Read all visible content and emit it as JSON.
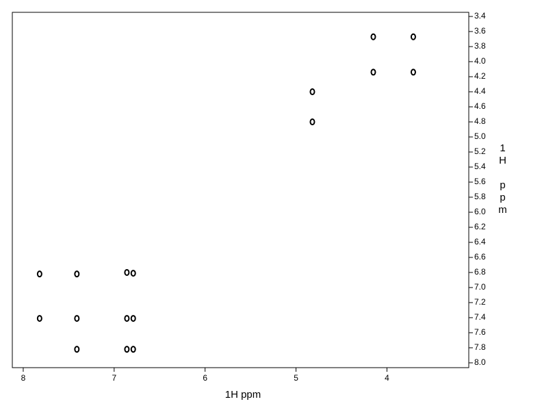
{
  "chart_data": {
    "type": "scatter",
    "x_label": "1H ppm",
    "y_label": "1H ppm",
    "xlim": [
      8.12,
      3.1
    ],
    "ylim": [
      3.345,
      8.064
    ],
    "xticks": [
      8,
      7,
      6,
      5,
      4
    ],
    "yticks": [
      3.4,
      3.6,
      3.8,
      {
        "value": 4.0,
        "label": "4.0"
      },
      4.2,
      4.4,
      4.6,
      4.8,
      {
        "value": 5.0,
        "label": "5.0"
      },
      5.2,
      5.4,
      5.6,
      5.8,
      {
        "value": 6.0,
        "label": "6.0"
      },
      6.2,
      6.4,
      6.6,
      6.8,
      {
        "value": 7.0,
        "label": "7.0"
      },
      7.2,
      7.4,
      7.6,
      7.8,
      {
        "value": 8.0,
        "label": "8.0"
      }
    ],
    "color": "#000000",
    "x": [
      7.82,
      7.41,
      6.86,
      6.79,
      7.82,
      7.41,
      6.86,
      6.79,
      7.41,
      6.86,
      6.79,
      4.82,
      4.82,
      4.15,
      3.71,
      4.15,
      3.71
    ],
    "y": [
      6.82,
      6.82,
      6.8,
      6.81,
      7.41,
      7.41,
      7.41,
      7.41,
      7.82,
      7.82,
      7.82,
      4.8,
      4.4,
      3.67,
      3.67,
      4.14,
      4.14
    ]
  }
}
